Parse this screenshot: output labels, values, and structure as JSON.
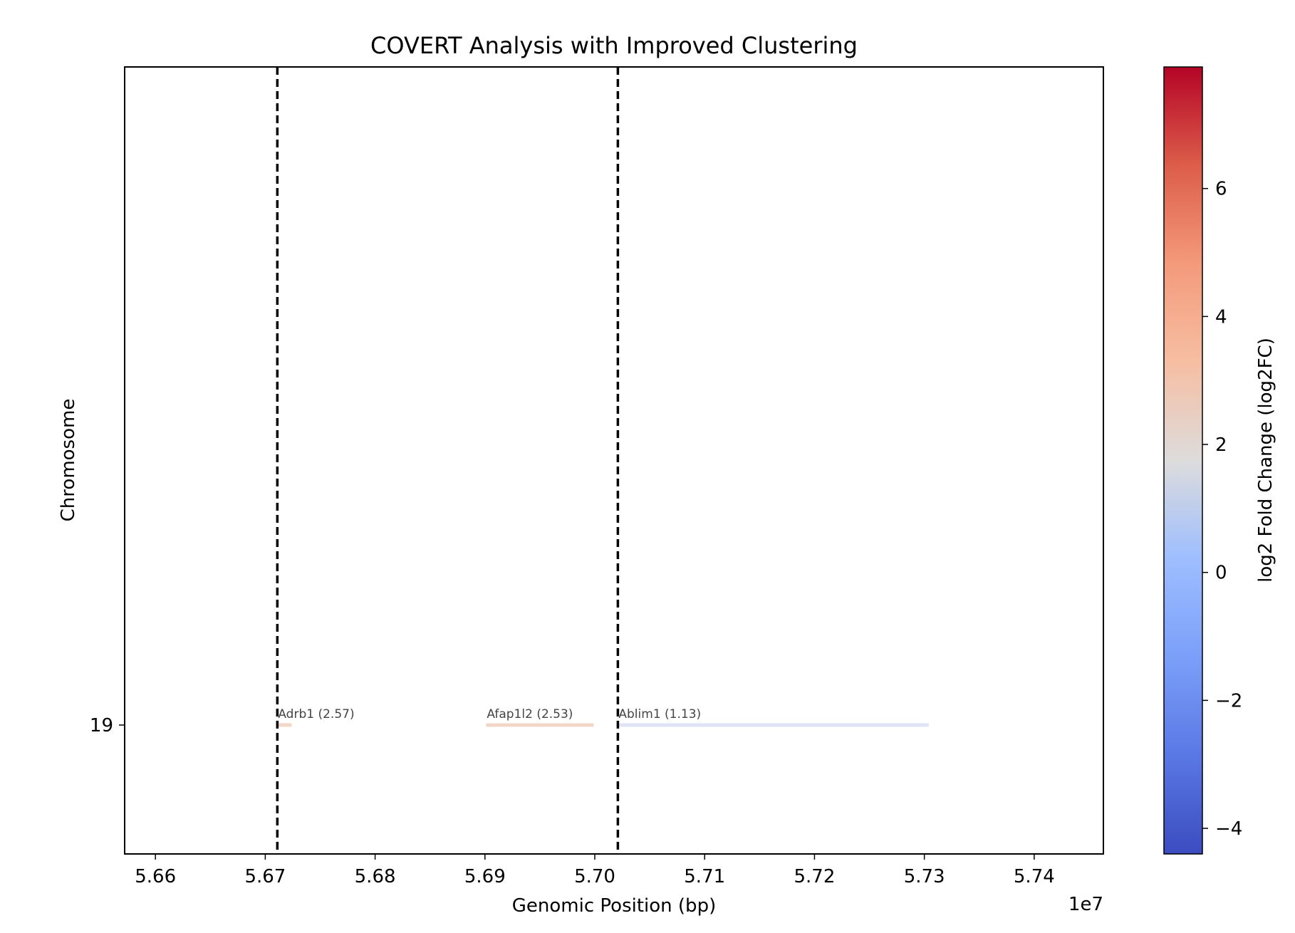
{
  "chart_data": {
    "type": "genomic-segments",
    "title": "COVERT Analysis with Improved Clustering",
    "xlabel": "Genomic Position (bp)",
    "ylabel": "Chromosome",
    "x_offset_label": "1e7",
    "xlim": [
      5.6572,
      5.7463
    ],
    "x_ticks": [
      5.66,
      5.67,
      5.68,
      5.69,
      5.7,
      5.71,
      5.72,
      5.73,
      5.74
    ],
    "x_tick_labels": [
      "5.66",
      "5.67",
      "5.68",
      "5.69",
      "5.70",
      "5.71",
      "5.72",
      "5.73",
      "5.74"
    ],
    "y_ticks": [
      {
        "label": "19"
      }
    ],
    "ylim_note": "single chromosome row near bottom",
    "grid": false,
    "boundary_lines": [
      5.6711,
      5.7021
    ],
    "genes": [
      {
        "name": "Adrb1",
        "log2fc": 2.57,
        "label": "Adrb1 (2.57)",
        "start": 5.6711,
        "end": 5.6724,
        "chrom": "19",
        "color": "#f2d6c6"
      },
      {
        "name": "Afap1l2",
        "log2fc": 2.53,
        "label": "Afap1l2 (2.53)",
        "start": 5.6901,
        "end": 5.6999,
        "chrom": "19",
        "color": "#f2d7c8"
      },
      {
        "name": "Ablim1",
        "log2fc": 1.13,
        "label": "Ablim1 (1.13)",
        "start": 5.7021,
        "end": 5.7304,
        "chrom": "19",
        "color": "#dde4f3"
      }
    ],
    "colorbar": {
      "label": "log2 Fold Change (log2FC)",
      "colormap": "coolwarm",
      "range": [
        -4.4,
        7.9
      ],
      "ticks": [
        -4,
        -2,
        0,
        2,
        4,
        6
      ],
      "tick_labels": [
        "−4",
        "−2",
        "0",
        "2",
        "4",
        "6"
      ]
    }
  }
}
